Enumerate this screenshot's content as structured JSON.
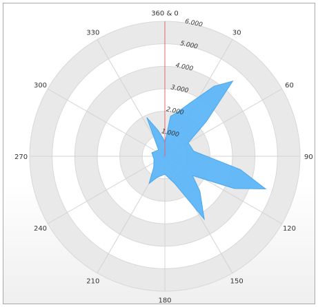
{
  "chart_data": {
    "type": "area",
    "polar": true,
    "angle_ticks": [
      "360 & 0",
      "30",
      "60",
      "90",
      "120",
      "150",
      "180",
      "210",
      "240",
      "270",
      "300",
      "330"
    ],
    "angle_tick_degrees": [
      0,
      30,
      60,
      90,
      120,
      150,
      180,
      210,
      240,
      270,
      300,
      330
    ],
    "radial_ticks": [
      "1.000",
      "2.000",
      "3.000",
      "4.000",
      "5.000",
      "6.000"
    ],
    "radial_tick_values": [
      1,
      2,
      3,
      4,
      5,
      6
    ],
    "rlim": [
      0,
      6
    ],
    "grid": true,
    "series": [
      {
        "color": "#5ab4f7",
        "points": [
          {
            "angle": 0,
            "r": 0.6
          },
          {
            "angle": 8,
            "r": 1.8
          },
          {
            "angle": 15,
            "r": 2.0
          },
          {
            "angle": 25,
            "r": 2.6
          },
          {
            "angle": 35,
            "r": 3.8
          },
          {
            "angle": 42,
            "r": 4.5
          },
          {
            "angle": 50,
            "r": 2.4
          },
          {
            "angle": 60,
            "r": 1.2
          },
          {
            "angle": 80,
            "r": 1.3
          },
          {
            "angle": 100,
            "r": 3.4
          },
          {
            "angle": 108,
            "r": 4.7
          },
          {
            "angle": 115,
            "r": 3.4
          },
          {
            "angle": 125,
            "r": 1.5
          },
          {
            "angle": 135,
            "r": 2.2
          },
          {
            "angle": 148,
            "r": 3.3
          },
          {
            "angle": 160,
            "r": 1.3
          },
          {
            "angle": 180,
            "r": 0.8
          },
          {
            "angle": 200,
            "r": 1.0
          },
          {
            "angle": 210,
            "r": 1.4
          },
          {
            "angle": 225,
            "r": 0.7
          },
          {
            "angle": 255,
            "r": 0.5
          },
          {
            "angle": 285,
            "r": 0.6
          },
          {
            "angle": 315,
            "r": 0.4
          },
          {
            "angle": 335,
            "r": 1.9
          },
          {
            "angle": 345,
            "r": 1.2
          },
          {
            "angle": 355,
            "r": 0.8
          }
        ]
      }
    ],
    "reference_line": {
      "angle": 0,
      "color": "#e06666"
    }
  }
}
